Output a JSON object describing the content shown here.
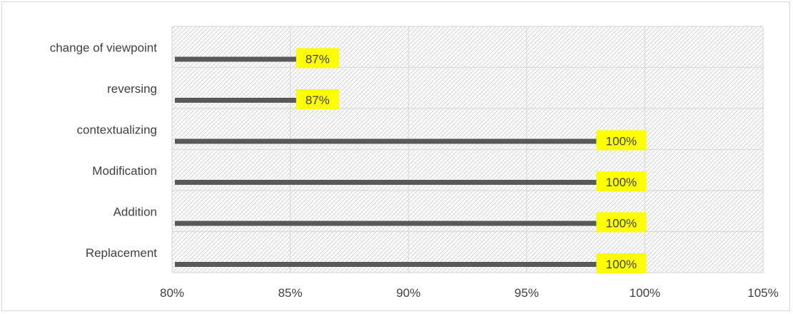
{
  "chart_data": {
    "type": "bar",
    "orientation": "horizontal",
    "categories": [
      "Replacement",
      "Addition",
      "Modification",
      "contextualizing",
      "reversing",
      "change of viewpoint"
    ],
    "values": [
      100,
      100,
      100,
      100,
      87,
      87
    ],
    "data_labels": [
      "100%",
      "100%",
      "100%",
      "100%",
      "87%",
      "87%"
    ],
    "xlim": [
      80,
      105
    ],
    "x_ticks": [
      80,
      85,
      90,
      95,
      100,
      105
    ],
    "x_tick_labels": [
      "80%",
      "85%",
      "90%",
      "95%",
      "100%",
      "105%"
    ],
    "title": "",
    "xlabel": "",
    "ylabel": "",
    "grid": true,
    "plot_fill": "light gray diagonal crosshatch",
    "colors": {
      "bar": "#595959",
      "data_label_bg": "#ffff00",
      "gridline": "#d9d9d9",
      "text": "#404040"
    }
  }
}
